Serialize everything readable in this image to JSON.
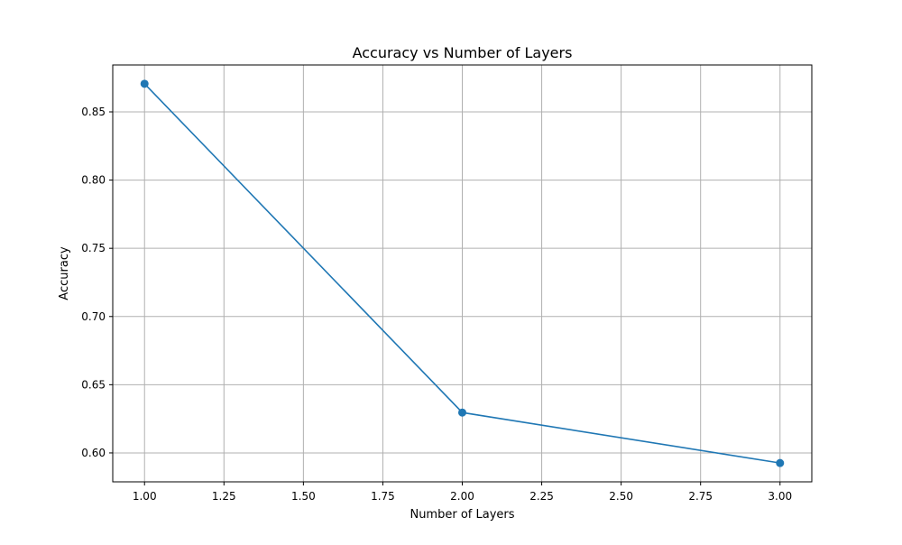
{
  "chart_data": {
    "type": "line",
    "title": "Accuracy vs Number of Layers",
    "xlabel": "Number of Layers",
    "ylabel": "Accuracy",
    "x": [
      1,
      2,
      3
    ],
    "series": [
      {
        "values": [
          0.8706,
          0.6296,
          0.5926
        ],
        "color": "#1f77b4",
        "marker": "circle"
      }
    ],
    "xlim": [
      0.9,
      3.1
    ],
    "ylim": [
      0.5788,
      0.8844
    ],
    "xticks": [
      1.0,
      1.25,
      1.5,
      1.75,
      2.0,
      2.25,
      2.5,
      2.75,
      3.0
    ],
    "xtick_labels": [
      "1.00",
      "1.25",
      "1.50",
      "1.75",
      "2.00",
      "2.25",
      "2.50",
      "2.75",
      "3.00"
    ],
    "yticks": [
      0.6,
      0.65,
      0.7,
      0.75,
      0.8,
      0.85
    ],
    "ytick_labels": [
      "0.60",
      "0.65",
      "0.70",
      "0.75",
      "0.80",
      "0.85"
    ],
    "grid": true,
    "grid_color": "#b0b0b0",
    "legend": false
  }
}
